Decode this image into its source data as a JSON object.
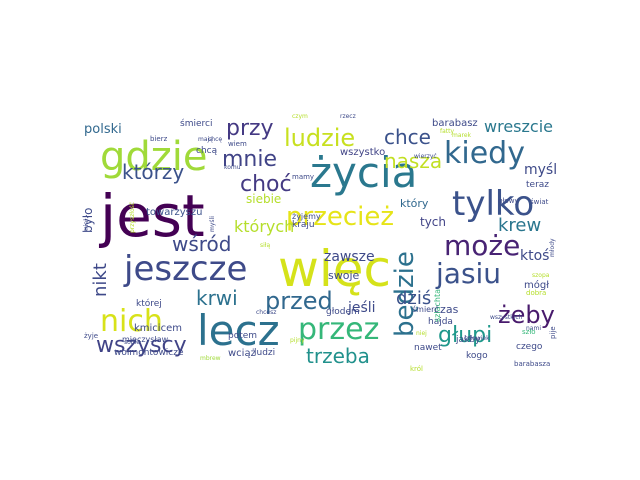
{
  "words": [
    {
      "text": "jest",
      "color": "#440154"
    },
    {
      "text": "więc",
      "color": "#d5e21a"
    },
    {
      "text": "życia",
      "color": "#2a788e"
    },
    {
      "text": "lecz",
      "color": "#2c718e"
    },
    {
      "text": "gdzie",
      "color": "#a0da39"
    },
    {
      "text": "tylko",
      "color": "#3b528b"
    },
    {
      "text": "jeszcze",
      "color": "#3e4a89"
    },
    {
      "text": "kiedy",
      "color": "#31688e"
    },
    {
      "text": "przez",
      "color": "#35b779"
    },
    {
      "text": "może",
      "color": "#482374"
    },
    {
      "text": "jasiu",
      "color": "#3b528b"
    },
    {
      "text": "będzie",
      "color": "#2c718e"
    },
    {
      "text": "nich",
      "color": "#d8e219"
    },
    {
      "text": "przecież",
      "color": "#e6e418"
    },
    {
      "text": "ludzie",
      "color": "#c8e020"
    },
    {
      "text": "przed",
      "color": "#31688e"
    },
    {
      "text": "żeby",
      "color": "#481a6c"
    },
    {
      "text": "głupi",
      "color": "#1f988b"
    },
    {
      "text": "wszyscy",
      "color": "#414487"
    },
    {
      "text": "trzeba",
      "color": "#21918c"
    },
    {
      "text": "przy",
      "color": "#443983"
    },
    {
      "text": "mnie",
      "color": "#414487"
    },
    {
      "text": "choć",
      "color": "#443a83"
    },
    {
      "text": "którzy",
      "color": "#3b528b"
    },
    {
      "text": "krwi",
      "color": "#2c718e"
    },
    {
      "text": "wśród",
      "color": "#3e4a89"
    },
    {
      "text": "chce",
      "color": "#3b528b"
    },
    {
      "text": "nasza",
      "color": "#c2df23"
    },
    {
      "text": "krew",
      "color": "#2a768e"
    },
    {
      "text": "nikt",
      "color": "#3e4989"
    },
    {
      "text": "dziś",
      "color": "#3b528b"
    },
    {
      "text": "których",
      "color": "#b5de2b"
    },
    {
      "text": "wreszcie",
      "color": "#2a788e"
    },
    {
      "text": "myśl",
      "color": "#3e4a89"
    },
    {
      "text": "ktoś",
      "color": "#3e4a89"
    },
    {
      "text": "zawsze",
      "color": "#3e4989"
    },
    {
      "text": "jeśli",
      "color": "#3e4a89"
    },
    {
      "text": "polski",
      "color": "#31688e"
    },
    {
      "text": "wszystko",
      "color": "#414487"
    },
    {
      "text": "siebie",
      "color": "#b5de2b"
    },
    {
      "text": "tych",
      "color": "#414487"
    },
    {
      "text": "który",
      "color": "#31688e"
    },
    {
      "text": "czas",
      "color": "#3e4a89"
    },
    {
      "text": "swoje",
      "color": "#3e4989"
    },
    {
      "text": "towarzyszu",
      "color": "#3b528b"
    },
    {
      "text": "kraju",
      "color": "#3e4989"
    },
    {
      "text": "barabasz",
      "color": "#3e4a89"
    },
    {
      "text": "było",
      "color": "#3e4a89"
    },
    {
      "text": "mógł",
      "color": "#3e4a89"
    },
    {
      "text": "kmicicem",
      "color": "#3e4a89"
    },
    {
      "text": "wołmontowicze",
      "color": "#3e4a89"
    },
    {
      "text": "wciąż",
      "color": "#3e4a89"
    },
    {
      "text": "ludzi",
      "color": "#3e4a89"
    },
    {
      "text": "głodem",
      "color": "#3e4a89"
    },
    {
      "text": "potem",
      "color": "#3e4a89"
    },
    {
      "text": "hajda",
      "color": "#3e4a89"
    },
    {
      "text": "nawet",
      "color": "#3e4a89"
    },
    {
      "text": "jakby",
      "color": "#3e4a89"
    },
    {
      "text": "kogo",
      "color": "#3e4a89"
    },
    {
      "text": "czego",
      "color": "#3e4a89"
    },
    {
      "text": "teraz",
      "color": "#3e4a89"
    },
    {
      "text": "głowy",
      "color": "#3e4a89"
    },
    {
      "text": "świat",
      "color": "#3e4a89"
    },
    {
      "text": "śmierci",
      "color": "#3e4a89"
    },
    {
      "text": "bierz",
      "color": "#3e4a89"
    },
    {
      "text": "mają",
      "color": "#3e4a89"
    },
    {
      "text": "chcą",
      "color": "#3e4a89"
    },
    {
      "text": "wiem",
      "color": "#3e4a89"
    },
    {
      "text": "komu",
      "color": "#3e4a89"
    },
    {
      "text": "mamy",
      "color": "#3e4a89"
    },
    {
      "text": "wierzyć",
      "color": "#3e4a89"
    },
    {
      "text": "żyjemy",
      "color": "#3e4a89"
    },
    {
      "text": "której",
      "color": "#3e4a89"
    },
    {
      "text": "mieczysław",
      "color": "#3e4a89"
    },
    {
      "text": "sobie",
      "color": "#3e4a89"
    },
    {
      "text": "mbrew",
      "color": "#a0da39"
    },
    {
      "text": "człowiek",
      "color": "#3e4a89"
    },
    {
      "text": "wszystkich",
      "color": "#3e4a89"
    },
    {
      "text": "młody",
      "color": "#3e4a89"
    },
    {
      "text": "nami",
      "color": "#3e4a89"
    },
    {
      "text": "szlachta",
      "color": "#35b779"
    },
    {
      "text": "śmierć",
      "color": "#3e4a89"
    },
    {
      "text": "dobra",
      "color": "#b5de2b"
    },
    {
      "text": "chcesz",
      "color": "#3e4a89"
    },
    {
      "text": "żyje",
      "color": "#3e4a89"
    },
    {
      "text": "miał",
      "color": "#3e4a89"
    },
    {
      "text": "przyszłość",
      "color": "#b5de2b"
    },
    {
      "text": "myśli",
      "color": "#3e4a89"
    },
    {
      "text": "siłą",
      "color": "#b5de2b"
    },
    {
      "text": "pijny",
      "color": "#b5de2b"
    },
    {
      "text": "król",
      "color": "#b5de2b"
    },
    {
      "text": "niej",
      "color": "#b5de2b"
    },
    {
      "text": "szło",
      "color": "#35b779"
    },
    {
      "text": "pije",
      "color": "#3e4a89"
    },
    {
      "text": "barabasza",
      "color": "#3e4a89"
    },
    {
      "text": "marek",
      "color": "#b5de2b"
    },
    {
      "text": "rzecz",
      "color": "#3e4a89"
    },
    {
      "text": "czym",
      "color": "#b5de2b"
    },
    {
      "text": "fatty",
      "color": "#b5de2b"
    },
    {
      "text": "szopa",
      "color": "#b5de2b"
    },
    {
      "text": "chcę",
      "color": "#3e4a89"
    }
  ]
}
